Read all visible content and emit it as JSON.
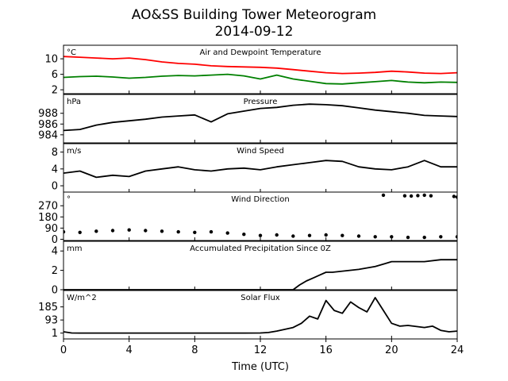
{
  "figure": {
    "title_line1": "AO&SS Building Tower Meteorogram",
    "title_line2": "2014-09-12",
    "xlabel": "Time (UTC)",
    "xticks": [
      "0",
      "4",
      "8",
      "12",
      "16",
      "20",
      "24"
    ],
    "xlim": [
      0,
      24
    ]
  },
  "chart_data": [
    {
      "type": "line",
      "panel": "temperature",
      "title": "Air and Dewpoint Temperature",
      "unit": "°C",
      "ylim": [
        1,
        13.5
      ],
      "yticks": [
        2,
        6,
        10
      ],
      "series": [
        {
          "color": "#ff0000",
          "x": [
            0,
            1,
            2,
            3,
            4,
            5,
            6,
            7,
            8,
            9,
            10,
            11,
            12,
            13,
            14,
            15,
            16,
            17,
            18,
            19,
            20,
            21,
            22,
            23,
            24
          ],
          "values": [
            10.6,
            10.4,
            10.2,
            10.0,
            10.2,
            9.8,
            9.2,
            8.8,
            8.6,
            8.2,
            8.0,
            7.9,
            7.8,
            7.6,
            7.2,
            6.8,
            6.4,
            6.2,
            6.3,
            6.5,
            6.8,
            6.6,
            6.3,
            6.2,
            6.4
          ]
        },
        {
          "color": "#008000",
          "x": [
            0,
            1,
            2,
            3,
            4,
            5,
            6,
            7,
            8,
            9,
            10,
            11,
            12,
            13,
            14,
            15,
            16,
            17,
            18,
            19,
            20,
            21,
            22,
            23,
            24
          ],
          "values": [
            5.2,
            5.4,
            5.5,
            5.3,
            5.0,
            5.2,
            5.5,
            5.7,
            5.6,
            5.8,
            6.0,
            5.6,
            4.8,
            5.8,
            4.8,
            4.2,
            3.6,
            3.5,
            3.8,
            4.1,
            4.4,
            4.0,
            3.8,
            4.0,
            3.9
          ]
        }
      ]
    },
    {
      "type": "line",
      "panel": "pressure",
      "title": "Pressure",
      "unit": "hPa",
      "ylim": [
        982.5,
        991.5
      ],
      "yticks": [
        984,
        986,
        988
      ],
      "series": [
        {
          "color": "#000000",
          "x": [
            0,
            1,
            2,
            3,
            4,
            5,
            6,
            7,
            8,
            9,
            10,
            11,
            12,
            13,
            14,
            15,
            16,
            17,
            18,
            19,
            20,
            21,
            22,
            23,
            24
          ],
          "values": [
            984.8,
            985.0,
            985.8,
            986.3,
            986.6,
            986.9,
            987.3,
            987.5,
            987.7,
            986.4,
            987.9,
            988.4,
            988.9,
            989.1,
            989.5,
            989.7,
            989.6,
            989.4,
            989.0,
            988.6,
            988.3,
            988.0,
            987.6,
            987.5,
            987.4
          ]
        }
      ]
    },
    {
      "type": "line",
      "panel": "wind_speed",
      "title": "Wind Speed",
      "unit": "m/s",
      "ylim": [
        -1.5,
        10
      ],
      "yticks": [
        0,
        4,
        8
      ],
      "series": [
        {
          "color": "#000000",
          "x": [
            0,
            1,
            2,
            3,
            4,
            5,
            6,
            7,
            8,
            9,
            10,
            11,
            12,
            13,
            14,
            15,
            16,
            17,
            18,
            19,
            20,
            21,
            22,
            23,
            24
          ],
          "values": [
            3.0,
            3.5,
            2.0,
            2.5,
            2.2,
            3.5,
            4.0,
            4.5,
            3.8,
            3.5,
            4.0,
            4.2,
            3.8,
            4.5,
            5.0,
            5.5,
            6.0,
            5.8,
            4.5,
            4.0,
            3.8,
            4.5,
            6.0,
            4.5,
            4.5
          ]
        }
      ]
    },
    {
      "type": "scatter",
      "panel": "wind_direction",
      "title": "Wind Direction",
      "unit": "°",
      "ylim": [
        -10,
        380
      ],
      "yticks": [
        0,
        90,
        180,
        270
      ],
      "series": [
        {
          "color": "#000000",
          "x": [
            0,
            1,
            2,
            3,
            4,
            5,
            6,
            7,
            8,
            9,
            10,
            11,
            12,
            13,
            14,
            15,
            16,
            17,
            18,
            19,
            20,
            21,
            22,
            23,
            24
          ],
          "values": [
            60,
            55,
            65,
            70,
            75,
            70,
            65,
            60,
            55,
            60,
            50,
            40,
            30,
            35,
            25,
            30,
            35,
            30,
            25,
            20,
            20,
            15,
            15,
            20,
            20
          ]
        },
        {
          "color": "#000000",
          "x": [
            19.5,
            20.8,
            21.2,
            21.6,
            22.0,
            22.4,
            23.8,
            24.0
          ],
          "values": [
            355,
            350,
            348,
            352,
            355,
            350,
            345,
            340
          ]
        }
      ]
    },
    {
      "type": "line",
      "panel": "precipitation",
      "title": "Accumulated Precipitation Since 0Z",
      "unit": "mm",
      "ylim": [
        0,
        5
      ],
      "yticks": [
        0,
        2,
        4
      ],
      "series": [
        {
          "color": "#000000",
          "x": [
            0,
            14.0,
            14.4,
            14.8,
            15.2,
            15.6,
            16.0,
            16.4,
            18.0,
            19.0,
            19.6,
            20.0,
            22.0,
            23.0,
            24.0
          ],
          "values": [
            0,
            0,
            0.5,
            0.9,
            1.2,
            1.5,
            1.8,
            1.8,
            2.1,
            2.4,
            2.7,
            2.9,
            2.9,
            3.1,
            3.1
          ]
        }
      ]
    },
    {
      "type": "line",
      "panel": "solar_flux",
      "title": "Solar Flux",
      "unit": "W/m^2",
      "ylim": [
        -40,
        300
      ],
      "yticks": [
        1,
        93,
        185
      ],
      "series": [
        {
          "color": "#000000",
          "x": [
            0,
            0.5,
            1,
            4,
            8,
            10,
            11,
            12,
            12.5,
            13,
            14,
            14.5,
            15,
            15.5,
            16,
            16.5,
            17,
            17.5,
            18,
            18.5,
            19,
            19.5,
            20,
            20.5,
            21,
            22,
            22.5,
            23,
            23.5,
            24
          ],
          "values": [
            10,
            2,
            1,
            1,
            1,
            1,
            1,
            2,
            5,
            15,
            40,
            70,
            120,
            100,
            230,
            160,
            140,
            220,
            180,
            150,
            250,
            160,
            70,
            50,
            55,
            40,
            50,
            20,
            10,
            15
          ]
        }
      ]
    }
  ]
}
